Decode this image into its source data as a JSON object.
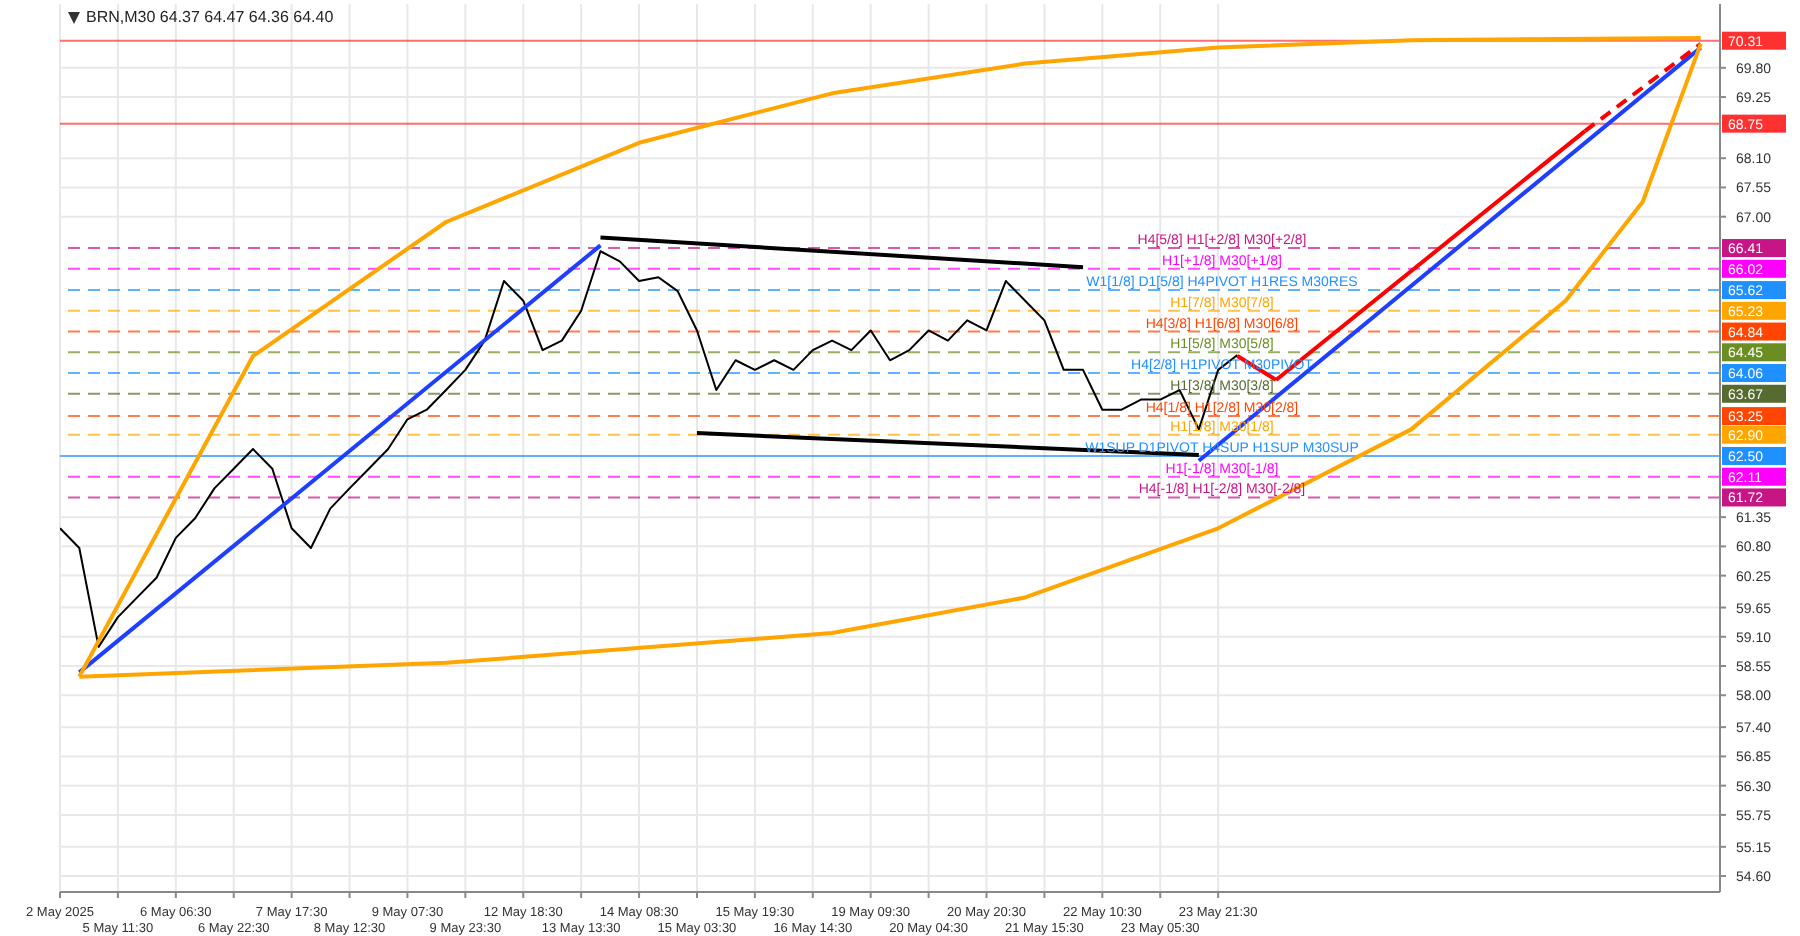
{
  "chart_data": {
    "type": "line",
    "title": "BRN,M30 64.37 64.47 64.36 64.40",
    "categories": [
      "2 May 2025",
      null,
      null,
      "5 May 11:30",
      null,
      null,
      "6 May 06:30",
      null,
      null,
      "6 May 22:30",
      null,
      null,
      "7 May 17:30",
      null,
      null,
      "8 May 12:30",
      null,
      null,
      "9 May 07:30",
      null,
      null,
      "9 May 23:30",
      null,
      null,
      "12 May 18:30",
      null,
      null,
      "13 May 13:30",
      null,
      null,
      "14 May 08:30",
      null,
      null,
      "15 May 03:30",
      null,
      null,
      "15 May 19:30",
      null,
      null,
      "16 May 14:30",
      null,
      null,
      "19 May 09:30",
      null,
      null,
      "20 May 04:30",
      null,
      null,
      "20 May 20:30",
      null,
      null,
      "21 May 15:30",
      null,
      null,
      "22 May 10:30",
      null,
      null,
      "23 May 05:30",
      null,
      null,
      "23 May 21:30",
      null,
      null,
      null,
      null,
      null,
      null,
      null,
      null,
      null,
      null,
      null,
      null,
      null,
      null,
      null,
      null,
      null,
      null,
      null,
      null,
      null,
      null,
      null,
      null,
      null,
      null
    ],
    "series": [
      {
        "color": "#000000",
        "values": [
          61.14,
          60.77,
          58.91,
          59.47,
          59.84,
          60.21,
          60.96,
          61.33,
          61.89,
          62.26,
          62.63,
          62.26,
          61.14,
          60.77,
          61.51,
          61.89,
          62.26,
          62.63,
          63.19,
          63.37,
          63.74,
          64.12,
          64.67,
          65.79,
          65.42,
          64.49,
          64.67,
          65.23,
          66.35,
          66.16,
          65.79,
          65.86,
          65.6,
          64.86,
          63.74,
          64.3,
          64.12,
          64.3,
          64.12,
          64.49,
          64.67,
          64.49,
          64.86,
          64.3,
          64.49,
          64.86,
          64.67,
          65.05,
          64.86,
          65.79,
          65.42,
          65.05,
          64.12,
          64.12,
          63.37,
          63.37,
          63.56,
          63.56,
          63.74,
          63.0,
          64.12,
          64.4,
          null,
          null,
          null,
          null,
          null,
          null,
          null,
          null,
          null,
          null,
          null,
          null,
          null,
          null,
          null,
          null,
          null,
          null,
          null,
          null,
          null,
          null,
          null,
          null,
          null
        ]
      },
      {
        "color": "#1f3fff",
        "values": [
          null,
          58.43,
          null,
          null,
          null,
          null,
          null,
          null,
          null,
          null,
          null,
          null,
          null,
          null,
          null,
          null,
          null,
          null,
          null,
          null,
          null,
          null,
          null,
          null,
          null,
          null,
          null,
          null,
          66.46,
          null,
          null,
          null,
          null,
          null,
          null,
          null,
          null,
          null,
          null,
          null,
          null,
          null,
          null,
          null,
          null,
          null,
          null,
          null,
          null,
          null,
          null,
          null,
          null,
          null,
          null,
          null,
          null,
          null,
          null,
          null,
          null,
          null,
          null,
          null,
          null,
          null,
          null,
          null,
          null,
          null,
          null,
          null,
          null,
          null,
          null,
          null,
          null,
          null,
          null,
          null,
          null,
          null,
          null,
          null,
          null,
          null,
          null
        ]
      },
      {
        "color": "#1f3fff",
        "values": [
          null,
          null,
          null,
          null,
          null,
          null,
          null,
          null,
          null,
          null,
          null,
          null,
          null,
          null,
          null,
          null,
          null,
          null,
          null,
          null,
          null,
          null,
          null,
          null,
          null,
          null,
          null,
          null,
          null,
          null,
          null,
          null,
          null,
          null,
          null,
          null,
          null,
          null,
          null,
          null,
          null,
          null,
          null,
          null,
          null,
          null,
          null,
          null,
          null,
          null,
          null,
          null,
          null,
          null,
          null,
          null,
          null,
          null,
          null,
          62.41,
          null,
          null,
          null,
          null,
          null,
          null,
          null,
          null,
          null,
          null,
          null,
          null,
          null,
          null,
          null,
          null,
          null,
          null,
          null,
          null,
          null,
          null,
          null,
          null,
          null,
          70.18,
          null
        ]
      },
      {
        "color": "#000000",
        "values": [
          null,
          null,
          null,
          null,
          null,
          null,
          null,
          null,
          null,
          null,
          null,
          null,
          null,
          null,
          null,
          null,
          null,
          null,
          null,
          null,
          null,
          null,
          null,
          null,
          null,
          null,
          null,
          null,
          66.61,
          null,
          null,
          null,
          null,
          null,
          null,
          null,
          null,
          null,
          null,
          null,
          null,
          null,
          null,
          null,
          null,
          null,
          null,
          null,
          null,
          null,
          null,
          null,
          null,
          66.05,
          null,
          null,
          null,
          null,
          null,
          null,
          null,
          null,
          null,
          null,
          null,
          null,
          null,
          null,
          null,
          null,
          null,
          null,
          null,
          null,
          null,
          null,
          null,
          null,
          null,
          null,
          null,
          null,
          null,
          null,
          null,
          null,
          null
        ]
      },
      {
        "color": "#000000",
        "values": [
          null,
          null,
          null,
          null,
          null,
          null,
          null,
          null,
          null,
          null,
          null,
          null,
          null,
          null,
          null,
          null,
          null,
          null,
          null,
          null,
          null,
          null,
          null,
          null,
          null,
          null,
          null,
          null,
          null,
          null,
          null,
          null,
          null,
          62.93,
          null,
          null,
          null,
          null,
          null,
          null,
          null,
          null,
          null,
          null,
          null,
          null,
          null,
          null,
          null,
          null,
          null,
          null,
          null,
          null,
          null,
          null,
          null,
          null,
          null,
          62.52,
          null,
          null,
          null,
          null,
          null,
          null,
          null,
          null,
          null,
          null,
          null,
          null,
          null,
          null,
          null,
          null,
          null,
          null,
          null,
          null,
          null,
          null,
          null,
          null,
          null,
          null,
          null
        ]
      },
      {
        "color": "#ff0000",
        "values": [
          null,
          null,
          null,
          null,
          null,
          null,
          null,
          null,
          null,
          null,
          null,
          null,
          null,
          null,
          null,
          null,
          null,
          null,
          null,
          null,
          null,
          null,
          null,
          null,
          null,
          null,
          null,
          null,
          null,
          null,
          null,
          null,
          null,
          null,
          null,
          null,
          null,
          null,
          null,
          null,
          null,
          null,
          null,
          null,
          null,
          null,
          null,
          null,
          null,
          null,
          null,
          null,
          null,
          null,
          null,
          null,
          null,
          null,
          null,
          null,
          null,
          64.38,
          null,
          63.93,
          null,
          null,
          null,
          null,
          null,
          null,
          null,
          null,
          null,
          null,
          null,
          null,
          null,
          null,
          null,
          null,
          null,
          null,
          null,
          null,
          null,
          null,
          null
        ]
      },
      {
        "color": "#ff0000",
        "values": [
          null,
          null,
          null,
          null,
          null,
          null,
          null,
          null,
          null,
          null,
          null,
          null,
          null,
          null,
          null,
          null,
          null,
          null,
          null,
          null,
          null,
          null,
          null,
          null,
          null,
          null,
          null,
          null,
          null,
          null,
          null,
          null,
          null,
          null,
          null,
          null,
          null,
          null,
          null,
          null,
          null,
          null,
          null,
          null,
          null,
          null,
          null,
          null,
          null,
          null,
          null,
          null,
          null,
          null,
          null,
          null,
          null,
          null,
          null,
          null,
          null,
          null,
          null,
          63.93,
          null,
          null,
          null,
          null,
          null,
          null,
          null,
          null,
          null,
          null,
          null,
          null,
          null,
          null,
          null,
          68.61,
          null,
          null,
          null,
          null,
          null,
          null,
          null
        ]
      },
      {
        "color": "#ff0000",
        "line_style": "dashed",
        "values": [
          null,
          null,
          null,
          null,
          null,
          null,
          null,
          null,
          null,
          null,
          null,
          null,
          null,
          null,
          null,
          null,
          null,
          null,
          null,
          null,
          null,
          null,
          null,
          null,
          null,
          null,
          null,
          null,
          null,
          null,
          null,
          null,
          null,
          null,
          null,
          null,
          null,
          null,
          null,
          null,
          null,
          null,
          null,
          null,
          null,
          null,
          null,
          null,
          null,
          null,
          null,
          null,
          null,
          null,
          null,
          null,
          null,
          null,
          null,
          null,
          null,
          null,
          null,
          null,
          null,
          null,
          null,
          null,
          null,
          null,
          null,
          null,
          null,
          null,
          null,
          null,
          null,
          null,
          null,
          68.61,
          null,
          null,
          null,
          null,
          null,
          70.25,
          null
        ]
      },
      {
        "color": "#ffa500",
        "values": [
          null,
          58.35,
          null,
          null,
          null,
          null,
          null,
          null,
          null,
          null,
          64.38,
          null,
          null,
          null,
          null,
          null,
          null,
          null,
          null,
          null,
          66.9,
          null,
          null,
          null,
          null,
          null,
          null,
          null,
          null,
          null,
          68.39,
          null,
          null,
          null,
          null,
          null,
          null,
          null,
          null,
          null,
          69.32,
          null,
          null,
          null,
          null,
          null,
          null,
          null,
          null,
          null,
          69.88,
          null,
          null,
          null,
          null,
          null,
          null,
          null,
          null,
          null,
          70.18,
          null,
          null,
          null,
          null,
          null,
          null,
          null,
          null,
          null,
          70.32,
          null,
          null,
          null,
          null,
          null,
          null,
          null,
          null,
          null,
          null,
          null,
          null,
          null,
          null,
          70.36,
          null
        ]
      },
      {
        "color": "#ffa500",
        "values": [
          null,
          58.35,
          null,
          null,
          null,
          null,
          null,
          null,
          null,
          null,
          null,
          null,
          null,
          null,
          null,
          null,
          null,
          null,
          null,
          null,
          58.61,
          null,
          null,
          null,
          null,
          null,
          null,
          null,
          null,
          null,
          null,
          null,
          null,
          null,
          null,
          null,
          null,
          null,
          null,
          null,
          59.17,
          null,
          null,
          null,
          null,
          null,
          null,
          null,
          null,
          null,
          59.84,
          null,
          null,
          null,
          null,
          null,
          null,
          null,
          null,
          null,
          61.14,
          null,
          null,
          null,
          null,
          null,
          null,
          null,
          null,
          null,
          63.0,
          null,
          null,
          null,
          null,
          null,
          null,
          null,
          65.42,
          null,
          null,
          null,
          67.28,
          null,
          null,
          70.25,
          null
        ]
      }
    ],
    "ylim": [
      54.3,
      71.0
    ],
    "yticks": [
      {
        "value": 54.6,
        "label": "54.60"
      },
      {
        "value": 55.15,
        "label": "55.15"
      },
      {
        "value": 55.75,
        "label": "55.75"
      },
      {
        "value": 56.3,
        "label": "56.30"
      },
      {
        "value": 56.85,
        "label": "56.85"
      },
      {
        "value": 57.4,
        "label": "57.40"
      },
      {
        "value": 58.0,
        "label": "58.00"
      },
      {
        "value": 58.55,
        "label": "58.55"
      },
      {
        "value": 59.1,
        "label": "59.10"
      },
      {
        "value": 59.65,
        "label": "59.65"
      },
      {
        "value": 60.25,
        "label": "60.25"
      },
      {
        "value": 60.8,
        "label": "60.80"
      },
      {
        "value": 61.35,
        "label": "61.35"
      },
      {
        "value": 67.0,
        "label": "67.00"
      },
      {
        "value": 67.55,
        "label": "67.55"
      },
      {
        "value": 68.1,
        "label": "68.10"
      },
      {
        "value": 69.25,
        "label": "69.25"
      },
      {
        "value": 69.8,
        "label": "69.80"
      }
    ],
    "annotations": [
      "70.31",
      "68.75",
      "66.41",
      "66.02",
      "65.62",
      "65.23",
      "64.84",
      "64.45",
      "64.06",
      "63.67",
      "63.25",
      "62.90",
      "62.50",
      "62.11",
      "61.72"
    ],
    "grid": true,
    "marker": "none",
    "line_style": "solid",
    "legend": false,
    "ref_lines": [
      {
        "axis": "y",
        "value": 70.31,
        "label": null,
        "color": "#ff3030",
        "line_style": "solid"
      },
      {
        "axis": "y",
        "value": 68.75,
        "label": null,
        "color": "#ff3030",
        "line_style": "solid"
      },
      {
        "axis": "y",
        "value": 66.41,
        "label": "H4[5/8] H1[+2/8] M30[+2/8]",
        "color": "#c71585",
        "line_style": "dashed"
      },
      {
        "axis": "y",
        "value": 66.02,
        "label": "H1[+1/8] M30[+1/8]",
        "color": "#ff00ff",
        "line_style": "dashed"
      },
      {
        "axis": "y",
        "value": 65.62,
        "label": "W1[1/8] D1[5/8] H4PIVOT H1RES M30RES",
        "color": "#1e90ff",
        "line_style": "dashed"
      },
      {
        "axis": "y",
        "value": 65.23,
        "label": "H1[7/8] M30[7/8]",
        "color": "#ffa500",
        "line_style": "dashed"
      },
      {
        "axis": "y",
        "value": 64.84,
        "label": "H4[3/8] H1[6/8] M30[6/8]",
        "color": "#ff4500",
        "line_style": "dashed"
      },
      {
        "axis": "y",
        "value": 64.45,
        "label": "H1[5/8] M30[5/8]",
        "color": "#6b8e23",
        "line_style": "dashed"
      },
      {
        "axis": "y",
        "value": 64.06,
        "label": "H4[2/8] H1PIVOT M30PIVOT",
        "color": "#1e90ff",
        "line_style": "dashed"
      },
      {
        "axis": "y",
        "value": 63.67,
        "label": "H1[3/8] M30[3/8]",
        "color": "#556b2f",
        "line_style": "dashed"
      },
      {
        "axis": "y",
        "value": 63.25,
        "label": "H4[1/8] H1[2/8] M30[2/8]",
        "color": "#ff4500",
        "line_style": "dashed"
      },
      {
        "axis": "y",
        "value": 62.9,
        "label": "H1[1/8] M30[1/8]",
        "color": "#ffa500",
        "line_style": "dashed"
      },
      {
        "axis": "y",
        "value": 62.5,
        "label": "W1SUP D1PIVOT H4SUP H1SUP M30SUP",
        "color": "#1e90ff",
        "line_style": "solid"
      },
      {
        "axis": "y",
        "value": 62.11,
        "label": "H1[-1/8] M30[-1/8]",
        "color": "#ff00ff",
        "line_style": "dashed"
      },
      {
        "axis": "y",
        "value": 61.72,
        "label": "H4[-1/8] H1[-2/8] M30[-2/8]",
        "color": "#c71585",
        "line_style": "dashed"
      }
    ]
  }
}
